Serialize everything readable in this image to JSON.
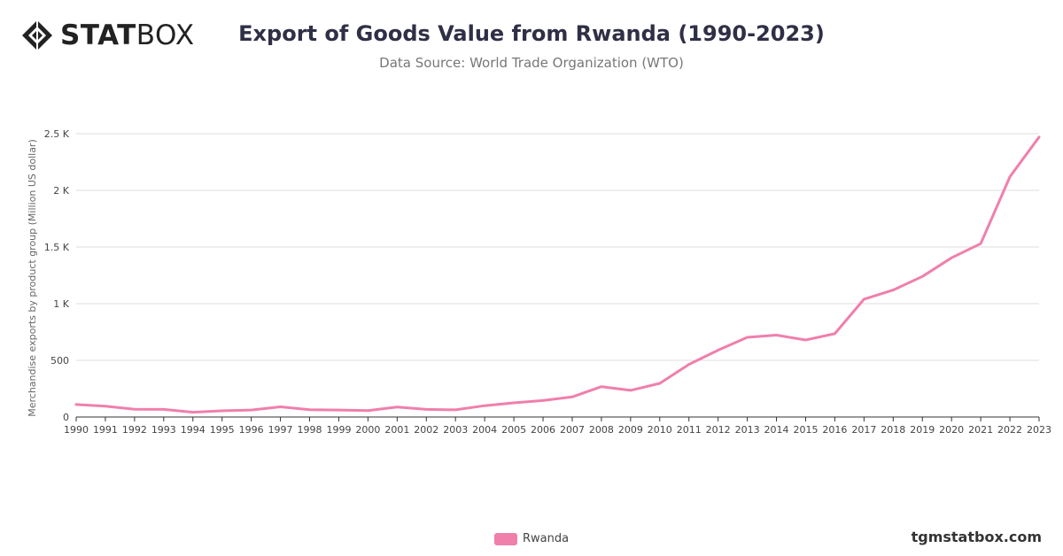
{
  "brand": {
    "logo_stat": "STAT",
    "logo_box": "BOX",
    "website": "tgmstatbox.com",
    "icon": "statbox-diamond-icon"
  },
  "colors": {
    "line": "#f07fac",
    "grid": "#dddddd",
    "title": "#2f2f46"
  },
  "chart_data": {
    "type": "line",
    "title": "Export of Goods Value from Rwanda (1990-2023)",
    "subtitle": "Data Source: World Trade Organization (WTO)",
    "xlabel": "",
    "ylabel": "Merchandise exports by product group (Million US dollar)",
    "ylim": [
      0,
      2500
    ],
    "yticks": [
      0,
      500,
      1000,
      1500,
      2000,
      2500
    ],
    "ytick_labels": [
      "0",
      "500",
      "1 K",
      "1.5 K",
      "2 K",
      "2.5 K"
    ],
    "grid": true,
    "legend_position": "bottom-center",
    "categories": [
      "1990",
      "1991",
      "1992",
      "1993",
      "1994",
      "1995",
      "1996",
      "1997",
      "1998",
      "1999",
      "2000",
      "2001",
      "2002",
      "2003",
      "2004",
      "2005",
      "2006",
      "2007",
      "2008",
      "2009",
      "2010",
      "2011",
      "2012",
      "2013",
      "2014",
      "2015",
      "2016",
      "2017",
      "2018",
      "2019",
      "2020",
      "2021",
      "2022",
      "2023"
    ],
    "series": [
      {
        "name": "Rwanda",
        "color": "#f07fac",
        "values": [
          110,
          95,
          68,
          67,
          42,
          55,
          62,
          90,
          64,
          62,
          56,
          88,
          67,
          63,
          100,
          125,
          145,
          177,
          268,
          235,
          297,
          464,
          590,
          703,
          723,
          680,
          735,
          1040,
          1120,
          1240,
          1405,
          1530,
          2120,
          2470
        ]
      }
    ]
  }
}
